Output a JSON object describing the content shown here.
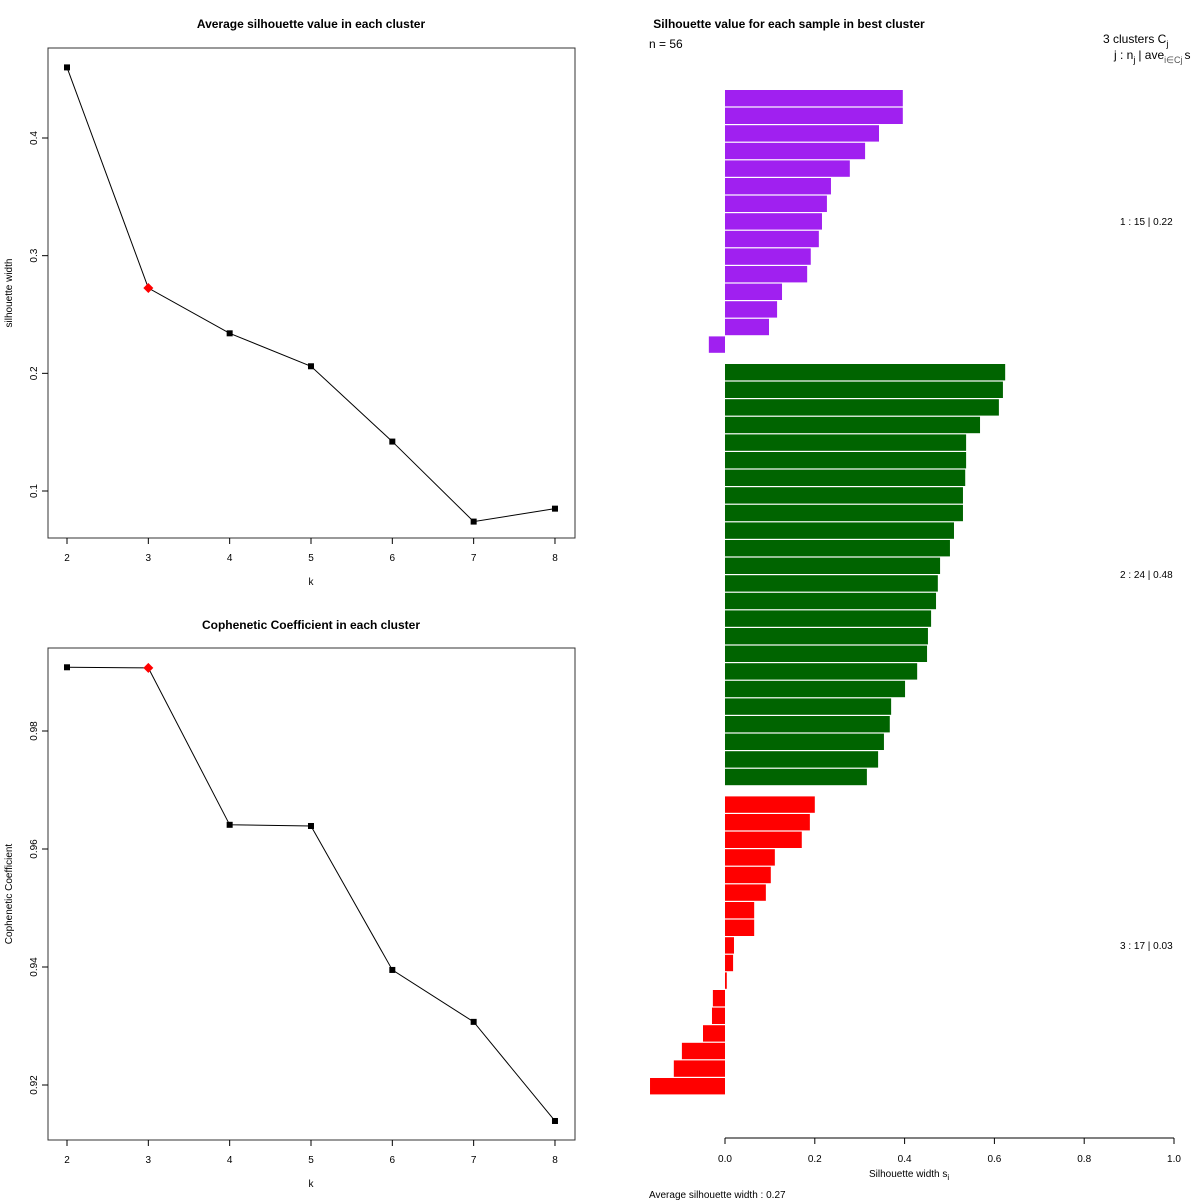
{
  "chart_data": [
    {
      "type": "line",
      "title": "Average silhouette value in each cluster",
      "xlabel": "k",
      "ylabel": "silhouette width",
      "x": [
        2,
        3,
        4,
        5,
        6,
        7,
        8
      ],
      "values": [
        0.46,
        0.2725,
        0.234,
        0.206,
        0.142,
        0.074,
        0.085
      ],
      "highlight_x": 3,
      "highlight_color": "#ff0000",
      "xticks": [
        "2",
        "3",
        "4",
        "5",
        "6",
        "7",
        "8"
      ],
      "yticks": [
        0.1,
        0.2,
        0.3,
        0.4
      ],
      "ytick_labels": [
        "0.1",
        "0.2",
        "0.3",
        "0.4"
      ],
      "ylim": [
        0.074,
        0.46
      ],
      "grid": false
    },
    {
      "type": "line",
      "title": "Cophenetic Coefficient in each cluster",
      "xlabel": "k",
      "ylabel": "Cophenetic Coefficient",
      "x": [
        2,
        3,
        4,
        5,
        6,
        7,
        8
      ],
      "values": [
        0.9908,
        0.9907,
        0.9641,
        0.9639,
        0.9395,
        0.9307,
        0.9139
      ],
      "highlight_x": 3,
      "highlight_color": "#ff0000",
      "xticks": [
        "2",
        "3",
        "4",
        "5",
        "6",
        "7",
        "8"
      ],
      "yticks": [
        0.92,
        0.94,
        0.96,
        0.98
      ],
      "ytick_labels": [
        "0.92",
        "0.94",
        "0.96",
        "0.98"
      ],
      "ylim": [
        0.9139,
        0.9908
      ],
      "grid": false
    },
    {
      "type": "bar",
      "orientation": "horizontal",
      "title": "Silhouette value for each sample in best cluster",
      "n_label": "n = 56",
      "legend_header": "3  clusters  C",
      "legend_header_sub": "j",
      "legend_sub": "j :  n",
      "legend_sub_rest": "| ave",
      "legend_sub_end": "s",
      "xlabel": "Silhouette width s",
      "xlabel_sub": "i",
      "xlim": [
        0,
        1
      ],
      "xticks": [
        0,
        0.2,
        0.4,
        0.6,
        0.8,
        1.0
      ],
      "xtick_labels": [
        "0.0",
        "0.2",
        "0.4",
        "0.6",
        "0.8",
        "1.0"
      ],
      "footer": "Average silhouette width :  0.27",
      "clusters": [
        {
          "label": "1 :   15  |  0.22",
          "color": "#a020f0",
          "values": [
            0.396,
            0.396,
            0.343,
            0.312,
            0.278,
            0.236,
            0.227,
            0.216,
            0.209,
            0.191,
            0.183,
            0.127,
            0.116,
            0.098,
            -0.036
          ]
        },
        {
          "label": "2 :   24  |  0.48",
          "color": "#006400",
          "values": [
            0.624,
            0.619,
            0.61,
            0.568,
            0.537,
            0.537,
            0.535,
            0.53,
            0.53,
            0.51,
            0.501,
            0.479,
            0.474,
            0.47,
            0.459,
            0.452,
            0.45,
            0.428,
            0.401,
            0.37,
            0.367,
            0.354,
            0.341,
            0.316
          ]
        },
        {
          "label": "3 :   17  |  0.03",
          "color": "#ff0000",
          "values": [
            0.2,
            0.189,
            0.171,
            0.111,
            0.102,
            0.091,
            0.065,
            0.065,
            0.02,
            0.018,
            0.004,
            -0.027,
            -0.029,
            -0.049,
            -0.096,
            -0.114,
            -0.167
          ]
        }
      ]
    }
  ]
}
